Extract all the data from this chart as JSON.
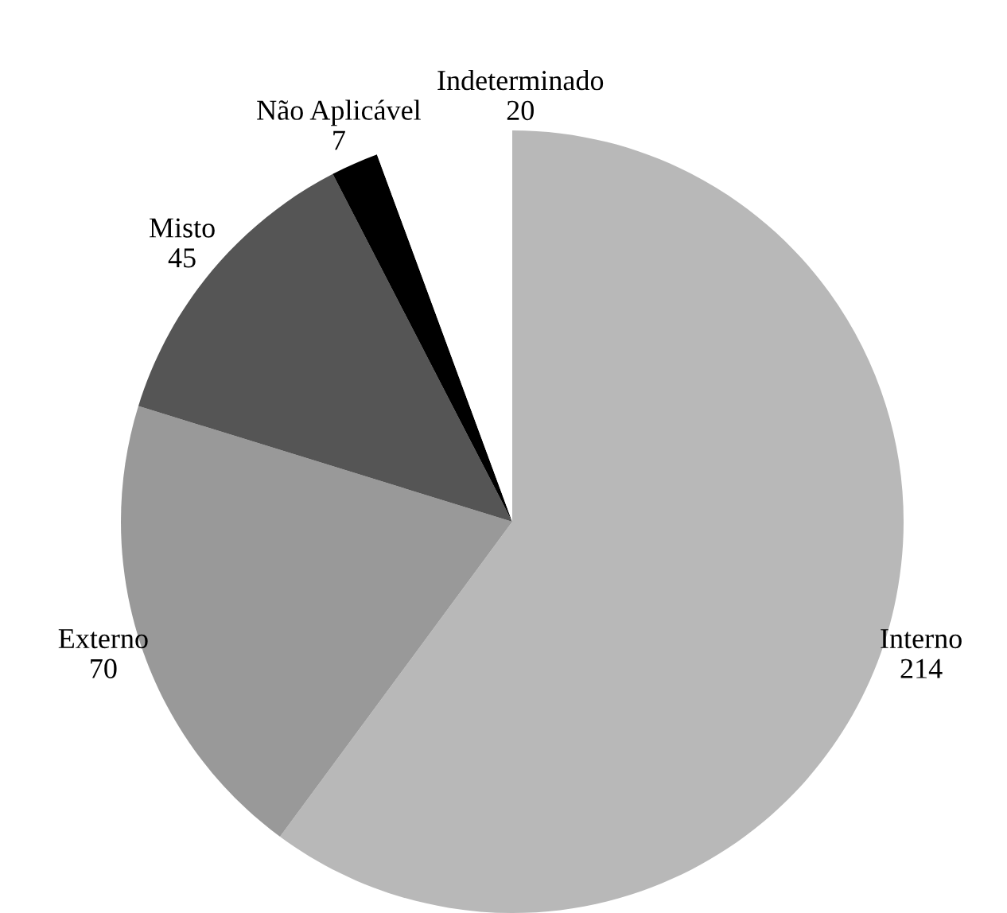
{
  "chart_data": {
    "type": "pie",
    "categories": [
      "Interno",
      "Externo",
      "Misto",
      "Não Aplicável",
      "Indeterminado"
    ],
    "values": [
      214,
      70,
      45,
      7,
      20
    ],
    "colors": [
      "#b8b8b8",
      "#999999",
      "#555555",
      "#000000",
      "#ffffff"
    ],
    "data_labels": true,
    "legend": false
  }
}
